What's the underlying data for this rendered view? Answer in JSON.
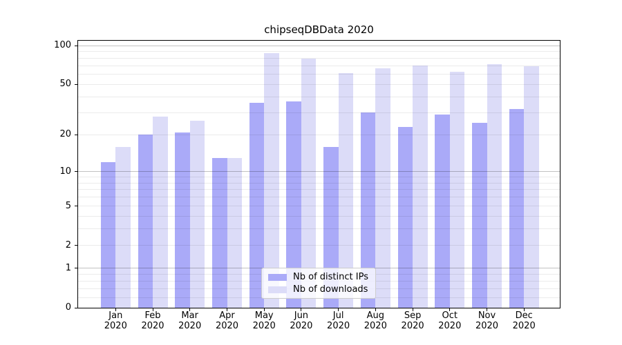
{
  "title": "chipseqDBData 2020",
  "chart_data": {
    "type": "bar",
    "categories": [
      "Jan 2020",
      "Feb 2020",
      "Mar 2020",
      "Apr 2020",
      "May 2020",
      "Jun 2020",
      "Jul 2020",
      "Aug 2020",
      "Sep 2020",
      "Oct 2020",
      "Nov 2020",
      "Dec 2020"
    ],
    "x_axis": {
      "months": [
        "Jan",
        "Feb",
        "Mar",
        "Apr",
        "May",
        "Jun",
        "Jul",
        "Aug",
        "Sep",
        "Oct",
        "Nov",
        "Dec"
      ],
      "year": "2020"
    },
    "series": [
      {
        "name": "Nb of distinct IPs",
        "color": "#aaaaf8",
        "values": [
          12,
          20,
          21,
          13,
          36,
          37,
          16,
          30,
          23,
          29,
          25,
          32
        ]
      },
      {
        "name": "Nb of downloads",
        "color": "#dcdcf8",
        "values": [
          16,
          28,
          26,
          13,
          87,
          79,
          61,
          67,
          70,
          63,
          72,
          69
        ]
      }
    ],
    "yscale": "log1p",
    "ylim": [
      0,
      108
    ],
    "yticks": [
      0,
      1,
      2,
      5,
      10,
      20,
      50,
      100
    ],
    "gridlines": {
      "major": [
        1,
        10,
        100
      ],
      "minor": [
        0.2,
        0.4,
        0.6,
        0.8,
        2,
        3,
        4,
        5,
        6,
        7,
        8,
        9,
        20,
        30,
        40,
        50,
        60,
        70,
        80,
        90
      ],
      "major_color": "rgba(0,0,0,0.24)",
      "minor_color": "rgba(0,0,0,0.08)"
    },
    "legend_position": "lower center",
    "grid": true
  }
}
